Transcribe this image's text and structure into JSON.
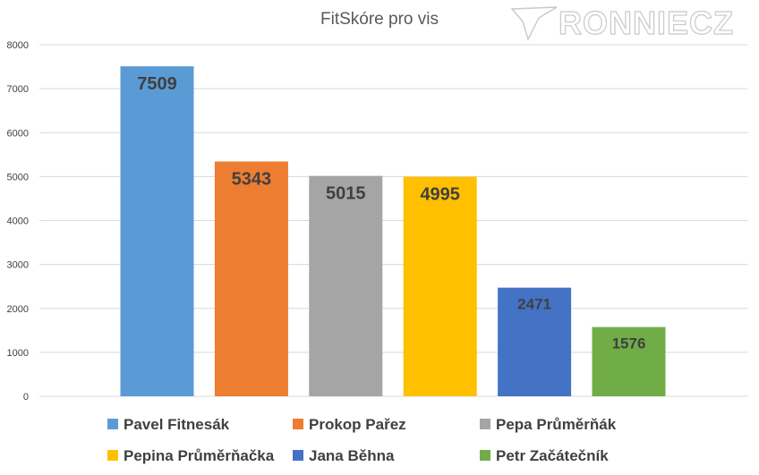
{
  "chart_data": {
    "type": "bar",
    "title": "FitSkóre pro vis",
    "xlabel": "",
    "ylabel": "",
    "ylim": [
      0,
      8000
    ],
    "yticks": [
      0,
      1000,
      2000,
      3000,
      4000,
      5000,
      6000,
      7000,
      8000
    ],
    "grid": true,
    "legend_position": "bottom",
    "categories": [
      "Pavel Fitnesák",
      "Prokop Pařez",
      "Pepa Průměrňák",
      "Pepina Průměrňačka",
      "Jana Běhna",
      "Petr Začátečník"
    ],
    "values": [
      7509,
      5343,
      5015,
      4995,
      2471,
      1576
    ],
    "colors": [
      "#5b9bd5",
      "#ed7d31",
      "#a5a5a5",
      "#ffc000",
      "#4472c4",
      "#70ad47"
    ],
    "data_labels": [
      "7509",
      "5343",
      "5015",
      "4995",
      "2471",
      "1576"
    ]
  },
  "watermark": {
    "text": "RONNIECZ",
    "logo_icon": "ronniecz-logo-icon"
  }
}
